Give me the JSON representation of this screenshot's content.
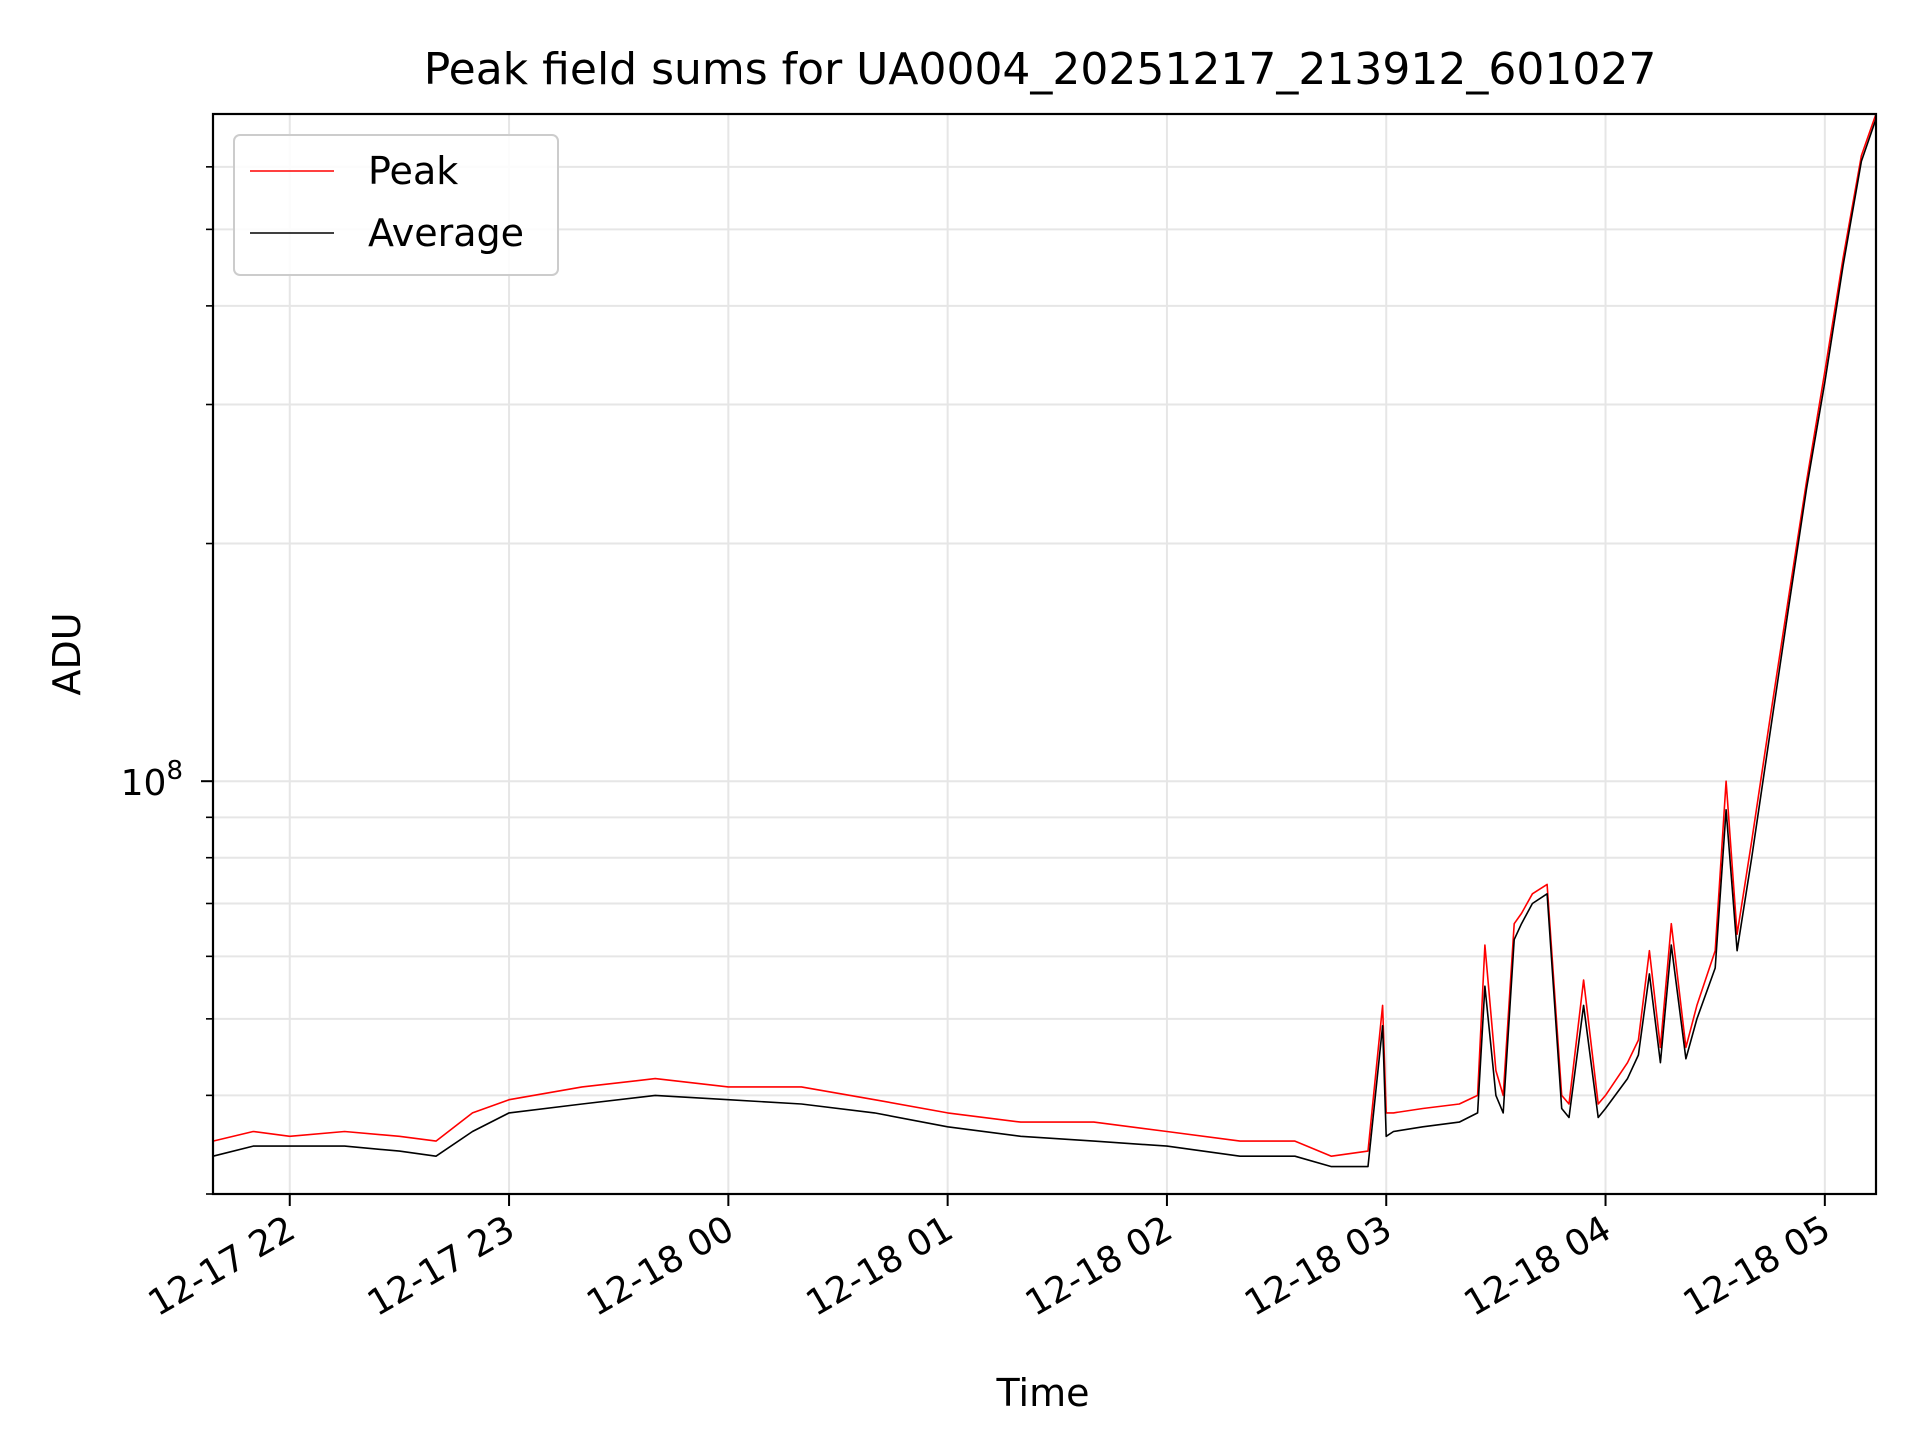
{
  "chart_data": {
    "type": "line",
    "title": "Peak field sums for UA0004_20251217_213912_601027",
    "xlabel": "Time",
    "ylabel": "ADU",
    "yscale": "log",
    "grid": true,
    "legend_position": "top-left",
    "xlim": [
      "2025-12-17 21:39",
      "2025-12-18 05:14"
    ],
    "ylim": [
      30000000,
      700000000
    ],
    "x_ticks": [
      {
        "value": "2025-12-17 22:00",
        "label": "12-17 22"
      },
      {
        "value": "2025-12-17 23:00",
        "label": "12-17 23"
      },
      {
        "value": "2025-12-18 00:00",
        "label": "12-18 00"
      },
      {
        "value": "2025-12-18 01:00",
        "label": "12-18 01"
      },
      {
        "value": "2025-12-18 02:00",
        "label": "12-18 02"
      },
      {
        "value": "2025-12-18 03:00",
        "label": "12-18 03"
      },
      {
        "value": "2025-12-18 04:00",
        "label": "12-18 04"
      },
      {
        "value": "2025-12-18 05:00",
        "label": "12-18 05"
      }
    ],
    "y_major_ticks": [
      {
        "value": 100000000,
        "label": "10",
        "exponent": "8"
      }
    ],
    "y_minor_ticks": [
      30000000,
      40000000,
      50000000,
      60000000,
      70000000,
      80000000,
      90000000,
      200000000,
      300000000,
      400000000,
      500000000,
      600000000
    ],
    "series": [
      {
        "name": "Peak",
        "color": "#ff0000",
        "x": [
          "2025-12-17 21:39",
          "2025-12-17 21:50",
          "2025-12-17 22:00",
          "2025-12-17 22:15",
          "2025-12-17 22:30",
          "2025-12-17 22:40",
          "2025-12-17 22:50",
          "2025-12-17 23:00",
          "2025-12-17 23:20",
          "2025-12-17 23:40",
          "2025-12-18 00:00",
          "2025-12-18 00:20",
          "2025-12-18 00:40",
          "2025-12-18 01:00",
          "2025-12-18 01:20",
          "2025-12-18 01:40",
          "2025-12-18 02:00",
          "2025-12-18 02:20",
          "2025-12-18 02:35",
          "2025-12-18 02:45",
          "2025-12-18 02:55",
          "2025-12-18 02:59",
          "2025-12-18 03:00",
          "2025-12-18 03:02",
          "2025-12-18 03:10",
          "2025-12-18 03:20",
          "2025-12-18 03:25",
          "2025-12-18 03:27",
          "2025-12-18 03:30",
          "2025-12-18 03:32",
          "2025-12-18 03:35",
          "2025-12-18 03:37",
          "2025-12-18 03:40",
          "2025-12-18 03:44",
          "2025-12-18 03:48",
          "2025-12-18 03:50",
          "2025-12-18 03:54",
          "2025-12-18 03:58",
          "2025-12-18 04:00",
          "2025-12-18 04:06",
          "2025-12-18 04:09",
          "2025-12-18 04:12",
          "2025-12-18 04:15",
          "2025-12-18 04:18",
          "2025-12-18 04:22",
          "2025-12-18 04:25",
          "2025-12-18 04:30",
          "2025-12-18 04:33",
          "2025-12-18 04:36",
          "2025-12-18 04:40",
          "2025-12-18 04:45",
          "2025-12-18 04:50",
          "2025-12-18 04:55",
          "2025-12-18 05:00",
          "2025-12-18 05:05",
          "2025-12-18 05:10",
          "2025-12-18 05:14"
        ],
        "values": [
          35000000,
          36000000,
          35500000,
          36000000,
          35500000,
          35000000,
          38000000,
          39500000,
          41000000,
          42000000,
          41000000,
          41000000,
          39500000,
          38000000,
          37000000,
          37000000,
          36000000,
          35000000,
          35000000,
          33500000,
          34000000,
          52000000,
          38000000,
          38000000,
          38500000,
          39000000,
          40000000,
          62000000,
          43000000,
          40000000,
          66000000,
          68000000,
          72000000,
          74000000,
          40000000,
          39000000,
          56000000,
          39000000,
          40000000,
          44000000,
          47000000,
          61000000,
          46000000,
          66000000,
          46000000,
          52000000,
          61000000,
          100000000,
          64000000,
          84000000,
          120000000,
          170000000,
          240000000,
          330000000,
          460000000,
          620000000,
          700000000
        ]
      },
      {
        "name": "Average",
        "color": "#000000",
        "x": [
          "2025-12-17 21:39",
          "2025-12-17 21:50",
          "2025-12-17 22:00",
          "2025-12-17 22:15",
          "2025-12-17 22:30",
          "2025-12-17 22:40",
          "2025-12-17 22:50",
          "2025-12-17 23:00",
          "2025-12-17 23:20",
          "2025-12-17 23:40",
          "2025-12-18 00:00",
          "2025-12-18 00:20",
          "2025-12-18 00:40",
          "2025-12-18 01:00",
          "2025-12-18 01:20",
          "2025-12-18 01:40",
          "2025-12-18 02:00",
          "2025-12-18 02:20",
          "2025-12-18 02:35",
          "2025-12-18 02:45",
          "2025-12-18 02:55",
          "2025-12-18 02:59",
          "2025-12-18 03:00",
          "2025-12-18 03:02",
          "2025-12-18 03:10",
          "2025-12-18 03:20",
          "2025-12-18 03:25",
          "2025-12-18 03:27",
          "2025-12-18 03:30",
          "2025-12-18 03:32",
          "2025-12-18 03:35",
          "2025-12-18 03:37",
          "2025-12-18 03:40",
          "2025-12-18 03:44",
          "2025-12-18 03:48",
          "2025-12-18 03:50",
          "2025-12-18 03:54",
          "2025-12-18 03:58",
          "2025-12-18 04:00",
          "2025-12-18 04:06",
          "2025-12-18 04:09",
          "2025-12-18 04:12",
          "2025-12-18 04:15",
          "2025-12-18 04:18",
          "2025-12-18 04:22",
          "2025-12-18 04:25",
          "2025-12-18 04:30",
          "2025-12-18 04:33",
          "2025-12-18 04:36",
          "2025-12-18 04:40",
          "2025-12-18 04:45",
          "2025-12-18 04:50",
          "2025-12-18 04:55",
          "2025-12-18 05:00",
          "2025-12-18 05:05",
          "2025-12-18 05:10",
          "2025-12-18 05:14"
        ],
        "values": [
          33500000,
          34500000,
          34500000,
          34500000,
          34000000,
          33500000,
          36000000,
          38000000,
          39000000,
          40000000,
          39500000,
          39000000,
          38000000,
          36500000,
          35500000,
          35000000,
          34500000,
          33500000,
          33500000,
          32500000,
          32500000,
          49000000,
          35500000,
          36000000,
          36500000,
          37000000,
          38000000,
          55000000,
          40000000,
          38000000,
          63000000,
          66000000,
          70000000,
          72000000,
          38500000,
          37500000,
          52000000,
          37500000,
          38500000,
          42000000,
          45000000,
          57000000,
          44000000,
          62000000,
          44500000,
          50000000,
          58000000,
          92000000,
          61000000,
          80000000,
          115000000,
          165000000,
          235000000,
          320000000,
          450000000,
          610000000,
          690000000
        ]
      }
    ]
  }
}
